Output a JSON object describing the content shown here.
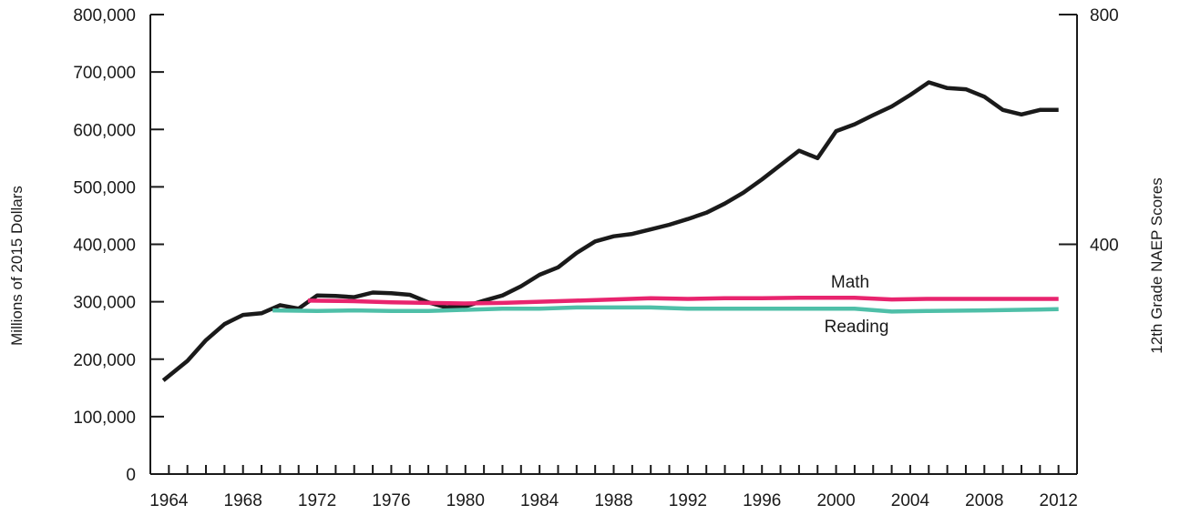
{
  "chart_data": {
    "type": "line",
    "title": "",
    "xlabel": "",
    "ylabel_left": "Millions of 2015 Dollars",
    "ylabel_right": "12th Grade NAEP Scores",
    "xlim": [
      1963,
      2013
    ],
    "ylim_left": [
      0,
      800000
    ],
    "ylim_right": [
      0,
      800
    ],
    "grid": false,
    "x_ticks": [
      1964,
      1968,
      1972,
      1976,
      1980,
      1984,
      1988,
      1992,
      1996,
      2000,
      2004,
      2008,
      2012
    ],
    "x_tick_labels": [
      "1964",
      "1968",
      "1972",
      "1976",
      "1980",
      "1984",
      "1988",
      "1992",
      "1996",
      "2000",
      "2004",
      "2008",
      "2012"
    ],
    "y_left_ticks": [
      0,
      100000,
      200000,
      300000,
      400000,
      500000,
      600000,
      700000,
      800000
    ],
    "y_left_tick_labels": [
      "0",
      "100,000",
      "200,000",
      "300,000",
      "400,000",
      "500,000",
      "600,000",
      "700,000",
      "800,000"
    ],
    "y_right_ticks": [
      400,
      800
    ],
    "y_right_tick_labels": [
      "400",
      "800"
    ],
    "series": [
      {
        "axis": "left",
        "color": "#1a1a1a",
        "x": [
          1963.7,
          1965,
          1966,
          1967,
          1968,
          1969,
          1970,
          1971,
          1972,
          1973,
          1974,
          1975,
          1976,
          1977,
          1978,
          1979,
          1980,
          1981,
          1982,
          1983,
          1984,
          1985,
          1986,
          1987,
          1988,
          1989,
          1990,
          1991,
          1992,
          1993,
          1994,
          1995,
          1996,
          1997,
          1998,
          1999,
          2000,
          2001,
          2002,
          2003,
          2004,
          2005,
          2006,
          2007,
          2008,
          2009,
          2010,
          2011,
          2012
        ],
        "values": [
          163000,
          197000,
          233000,
          261000,
          277000,
          280000,
          294000,
          288000,
          311000,
          310000,
          308000,
          316000,
          315000,
          312000,
          299000,
          290000,
          292000,
          302000,
          311000,
          327000,
          347000,
          360000,
          385000,
          405000,
          414000,
          418000,
          426000,
          434000,
          444000,
          455000,
          471000,
          490000,
          513000,
          538000,
          563000,
          550000,
          597000,
          609000,
          625000,
          640000,
          660000,
          682000,
          672000,
          670000,
          657000,
          634000,
          626000,
          634000,
          634000
        ]
      },
      {
        "name": "Math",
        "axis": "right",
        "color": "#e8246e",
        "x": [
          1971.5,
          1974,
          1976,
          1978,
          1980,
          1982,
          1984,
          1986,
          1988,
          1990,
          1992,
          1994,
          1996,
          1998,
          2000,
          2001,
          2003,
          2005,
          2008,
          2012
        ],
        "values": [
          302,
          301,
          299,
          298,
          297,
          298,
          300,
          302,
          304,
          306,
          305,
          306,
          306,
          307,
          307,
          307,
          304,
          305,
          305,
          305
        ]
      },
      {
        "name": "Reading",
        "axis": "right",
        "color": "#4fbfa8",
        "x": [
          1969.6,
          1972,
          1974,
          1976,
          1978,
          1980,
          1982,
          1984,
          1986,
          1988,
          1990,
          1992,
          1994,
          1996,
          1998,
          2000,
          2001,
          2003,
          2005,
          2008,
          2012
        ],
        "values": [
          285,
          284,
          285,
          284,
          284,
          286,
          288,
          288,
          290,
          290,
          290,
          288,
          288,
          288,
          288,
          288,
          288,
          283,
          284,
          285,
          287
        ]
      }
    ]
  }
}
